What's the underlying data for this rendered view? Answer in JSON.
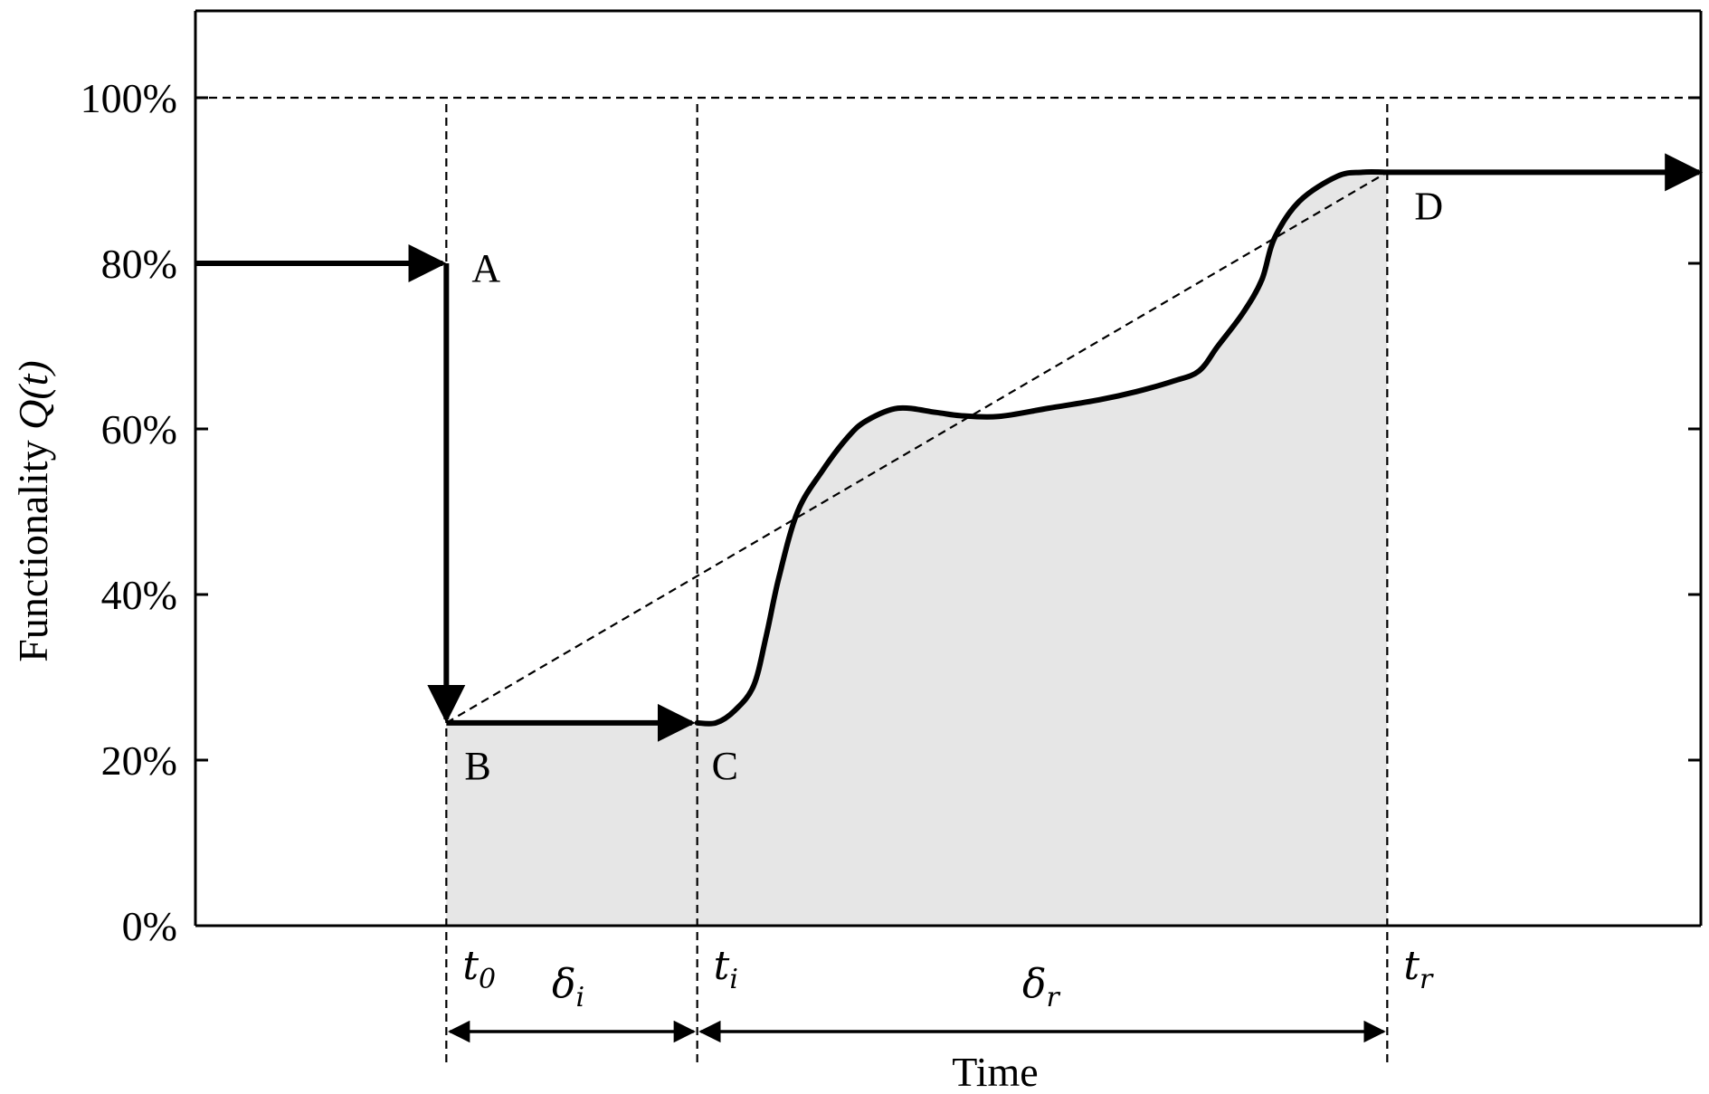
{
  "chart_data": {
    "type": "line",
    "title": "",
    "xlabel": "Time",
    "ylabel": "Functionality",
    "ylabel_symbol": "Q(t)",
    "ylim": [
      0,
      112
    ],
    "yticks": [
      {
        "value": 0,
        "label": "0%"
      },
      {
        "value": 20,
        "label": "20%"
      },
      {
        "value": 40,
        "label": "40%"
      },
      {
        "value": 60,
        "label": "60%"
      },
      {
        "value": 80,
        "label": "80%"
      },
      {
        "value": 100,
        "label": "100%"
      }
    ],
    "reference_line": {
      "value": 100,
      "style": "dashed"
    },
    "time_marks": [
      {
        "id": "t0",
        "base": "t",
        "sub": "0",
        "x": 2.0
      },
      {
        "id": "ti",
        "base": "t",
        "sub": "i",
        "x": 4.0
      },
      {
        "id": "tr",
        "base": "t",
        "sub": "r",
        "x": 9.5
      }
    ],
    "intervals": [
      {
        "base": "δ",
        "sub": "i",
        "from": 2.0,
        "to": 4.0
      },
      {
        "base": "δ",
        "sub": "r",
        "from": 4.0,
        "to": 9.5
      }
    ],
    "points": [
      {
        "label": "A",
        "x": 2.0,
        "y": 80
      },
      {
        "label": "B",
        "x": 2.0,
        "y": 24.5
      },
      {
        "label": "C",
        "x": 4.0,
        "y": 24.5
      },
      {
        "label": "D",
        "x": 9.5,
        "y": 91
      }
    ],
    "series": [
      {
        "style": "solid-thick",
        "points": [
          [
            4.0,
            24.5
          ],
          [
            4.15,
            24.5
          ],
          [
            4.3,
            26
          ],
          [
            4.45,
            29
          ],
          [
            4.55,
            35
          ],
          [
            4.65,
            42
          ],
          [
            4.8,
            50
          ],
          [
            5.0,
            55
          ],
          [
            5.2,
            59
          ],
          [
            5.35,
            61
          ],
          [
            5.6,
            62.5
          ],
          [
            5.9,
            62
          ],
          [
            6.1,
            61.6
          ],
          [
            6.4,
            61.5
          ],
          [
            6.8,
            62.5
          ],
          [
            7.2,
            63.5
          ],
          [
            7.5,
            64.5
          ],
          [
            7.8,
            65.8
          ],
          [
            8.0,
            67
          ],
          [
            8.15,
            70
          ],
          [
            8.35,
            74
          ],
          [
            8.5,
            78
          ],
          [
            8.6,
            83
          ],
          [
            8.8,
            87.5
          ],
          [
            9.1,
            90.5
          ],
          [
            9.3,
            91
          ],
          [
            9.5,
            91
          ]
        ]
      }
    ],
    "dashed_linear": [
      [
        2.0,
        24.5
      ],
      [
        9.5,
        91
      ]
    ],
    "shading": "area under the functionality curve from t0 to tr"
  }
}
